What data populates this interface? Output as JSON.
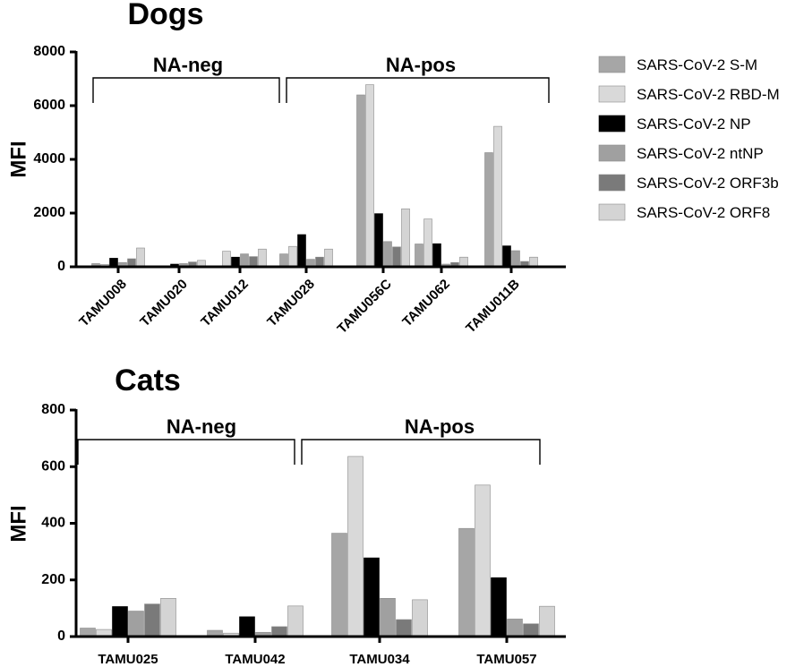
{
  "colors": {
    "SARS-CoV-2 S-M": "#a6a6a6",
    "SARS-CoV-2 RBD-M": "#d9d9d9",
    "SARS-CoV-2 NP": "#000000",
    "SARS-CoV-2 ntNP": "#a0a0a0",
    "SARS-CoV-2 ORF3b": "#7a7a7a",
    "SARS-CoV-2 ORF8": "#d4d4d4"
  },
  "legend": {
    "position": "right",
    "entries": [
      "SARS-CoV-2 S-M",
      "SARS-CoV-2 RBD-M",
      "SARS-CoV-2 NP",
      "SARS-CoV-2 ntNP",
      "SARS-CoV-2 ORF3b",
      "SARS-CoV-2 ORF8"
    ]
  },
  "chart_data": [
    {
      "type": "bar",
      "title": "Dogs",
      "ylabel": "MFI",
      "xlabel": "",
      "ylim": [
        0,
        8000
      ],
      "yticks": [
        0,
        2000,
        4000,
        6000,
        8000
      ],
      "categories": [
        "TAMU008",
        "TAMU020",
        "TAMU012",
        "TAMU028",
        "TAMU056C",
        "TAMU062",
        "TAMU011B"
      ],
      "groups": [
        {
          "label": "NA-neg",
          "from": 0,
          "to": 2
        },
        {
          "label": "NA-pos",
          "from": 3,
          "to": 6
        }
      ],
      "series": [
        {
          "name": "SARS-CoV-2 S-M",
          "values": [
            120,
            20,
            10,
            480,
            6400,
            850,
            4250
          ]
        },
        {
          "name": "SARS-CoV-2 RBD-M",
          "values": [
            90,
            30,
            580,
            760,
            6780,
            1780,
            5230
          ]
        },
        {
          "name": "SARS-CoV-2 NP",
          "values": [
            320,
            100,
            360,
            1200,
            1980,
            860,
            780
          ]
        },
        {
          "name": "SARS-CoV-2 ntNP",
          "values": [
            160,
            120,
            480,
            280,
            940,
            100,
            600
          ]
        },
        {
          "name": "SARS-CoV-2 ORF3b",
          "values": [
            300,
            180,
            380,
            360,
            740,
            160,
            200
          ]
        },
        {
          "name": "SARS-CoV-2 ORF8",
          "values": [
            700,
            240,
            660,
            660,
            2160,
            360,
            360
          ]
        }
      ]
    },
    {
      "type": "bar",
      "title": "Cats",
      "ylabel": "MFI",
      "xlabel": "",
      "ylim": [
        0,
        800
      ],
      "yticks": [
        0,
        200,
        400,
        600,
        800
      ],
      "categories": [
        "TAMU025",
        "TAMU042",
        "TAMU034",
        "TAMU057"
      ],
      "groups": [
        {
          "label": "NA-neg",
          "from": 0,
          "to": 1
        },
        {
          "label": "NA-pos",
          "from": 2,
          "to": 3
        }
      ],
      "series": [
        {
          "name": "SARS-CoV-2 S-M",
          "values": [
            30,
            22,
            365,
            382
          ]
        },
        {
          "name": "SARS-CoV-2 RBD-M",
          "values": [
            25,
            12,
            636,
            535
          ]
        },
        {
          "name": "SARS-CoV-2 NP",
          "values": [
            106,
            70,
            278,
            208
          ]
        },
        {
          "name": "SARS-CoV-2 ntNP",
          "values": [
            90,
            15,
            135,
            62
          ]
        },
        {
          "name": "SARS-CoV-2 ORF3b",
          "values": [
            115,
            35,
            60,
            45
          ]
        },
        {
          "name": "SARS-CoV-2 ORF8",
          "values": [
            135,
            108,
            130,
            107
          ]
        }
      ]
    }
  ]
}
